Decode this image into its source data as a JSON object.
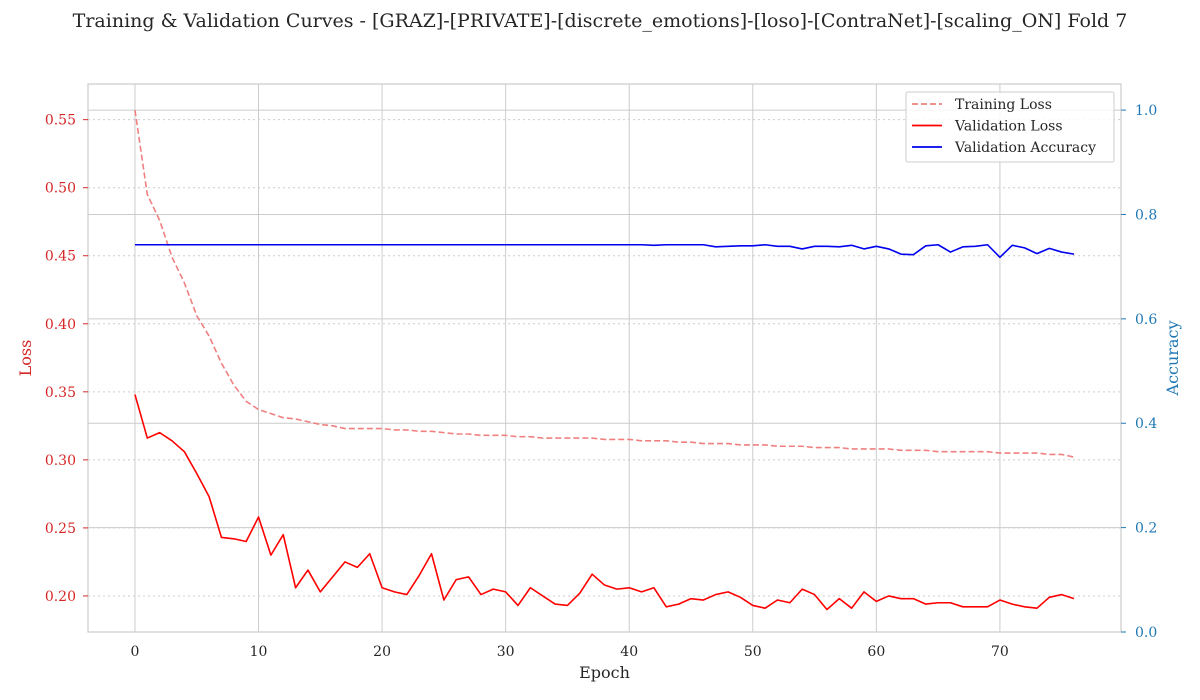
{
  "chart_data": {
    "type": "line",
    "title": "Training & Validation Curves - [GRAZ]-[PRIVATE]-[discrete_emotions]-[loso]-[ContraNet]-[scaling_ON] Fold 7",
    "xlabel": "Epoch",
    "ylabel_left": "Loss",
    "ylabel_right": "Accuracy",
    "xlim": [
      -3.8,
      79.8
    ],
    "ylim_left": [
      0.1735,
      0.5762
    ],
    "ylim_right": [
      0.0,
      1.05
    ],
    "x_ticks": [
      0,
      10,
      20,
      30,
      40,
      50,
      60,
      70
    ],
    "y_ticks_left": [
      0.2,
      0.25,
      0.3,
      0.35,
      0.4,
      0.45,
      0.5,
      0.55
    ],
    "y_ticks_right": [
      0.0,
      0.2,
      0.4,
      0.6,
      0.8,
      1.0
    ],
    "grid": true,
    "legend_position": "top-right",
    "colors": {
      "training_loss": "#f08080",
      "validation_loss": "#ff0000",
      "validation_accuracy": "#0000ee",
      "left_axis": "#d62728",
      "right_axis": "#1f77b4"
    },
    "series": [
      {
        "name": "Training Loss",
        "axis": "left",
        "style": "dashed",
        "values": [
          0.557,
          0.495,
          0.476,
          0.449,
          0.43,
          0.406,
          0.391,
          0.371,
          0.355,
          0.343,
          0.337,
          0.334,
          0.331,
          0.33,
          0.328,
          0.326,
          0.325,
          0.323,
          0.323,
          0.323,
          0.323,
          0.322,
          0.322,
          0.321,
          0.321,
          0.32,
          0.319,
          0.319,
          0.318,
          0.318,
          0.318,
          0.317,
          0.317,
          0.316,
          0.316,
          0.316,
          0.316,
          0.316,
          0.315,
          0.315,
          0.315,
          0.314,
          0.314,
          0.314,
          0.313,
          0.313,
          0.312,
          0.312,
          0.312,
          0.311,
          0.311,
          0.311,
          0.31,
          0.31,
          0.31,
          0.309,
          0.309,
          0.309,
          0.308,
          0.308,
          0.308,
          0.308,
          0.307,
          0.307,
          0.307,
          0.306,
          0.306,
          0.306,
          0.306,
          0.306,
          0.305,
          0.305,
          0.305,
          0.305,
          0.304,
          0.304,
          0.302
        ]
      },
      {
        "name": "Validation Loss",
        "axis": "left",
        "style": "solid",
        "values": [
          0.348,
          0.316,
          0.32,
          0.314,
          0.306,
          0.29,
          0.273,
          0.243,
          0.242,
          0.24,
          0.258,
          0.23,
          0.245,
          0.206,
          0.219,
          0.203,
          0.214,
          0.225,
          0.221,
          0.231,
          0.206,
          0.203,
          0.201,
          0.215,
          0.231,
          0.197,
          0.212,
          0.214,
          0.201,
          0.205,
          0.203,
          0.193,
          0.206,
          0.2,
          0.194,
          0.193,
          0.202,
          0.216,
          0.208,
          0.205,
          0.206,
          0.203,
          0.206,
          0.192,
          0.194,
          0.198,
          0.197,
          0.201,
          0.203,
          0.199,
          0.193,
          0.191,
          0.197,
          0.195,
          0.205,
          0.201,
          0.19,
          0.198,
          0.191,
          0.203,
          0.196,
          0.2,
          0.198,
          0.198,
          0.194,
          0.195,
          0.195,
          0.192,
          0.192,
          0.192,
          0.197,
          0.194,
          0.192,
          0.191,
          0.199,
          0.201,
          0.198
        ]
      },
      {
        "name": "Validation Accuracy",
        "axis": "right",
        "style": "solid",
        "values": [
          0.742,
          0.742,
          0.742,
          0.742,
          0.742,
          0.742,
          0.742,
          0.742,
          0.742,
          0.742,
          0.742,
          0.742,
          0.742,
          0.742,
          0.742,
          0.742,
          0.742,
          0.742,
          0.742,
          0.742,
          0.742,
          0.742,
          0.742,
          0.742,
          0.742,
          0.742,
          0.742,
          0.742,
          0.742,
          0.742,
          0.742,
          0.742,
          0.742,
          0.742,
          0.742,
          0.742,
          0.742,
          0.742,
          0.742,
          0.742,
          0.742,
          0.742,
          0.741,
          0.742,
          0.742,
          0.742,
          0.742,
          0.738,
          0.739,
          0.74,
          0.74,
          0.742,
          0.739,
          0.739,
          0.734,
          0.739,
          0.739,
          0.738,
          0.741,
          0.734,
          0.739,
          0.734,
          0.724,
          0.723,
          0.74,
          0.742,
          0.728,
          0.738,
          0.739,
          0.742,
          0.718,
          0.741,
          0.736,
          0.725,
          0.735,
          0.728,
          0.724
        ]
      }
    ]
  }
}
